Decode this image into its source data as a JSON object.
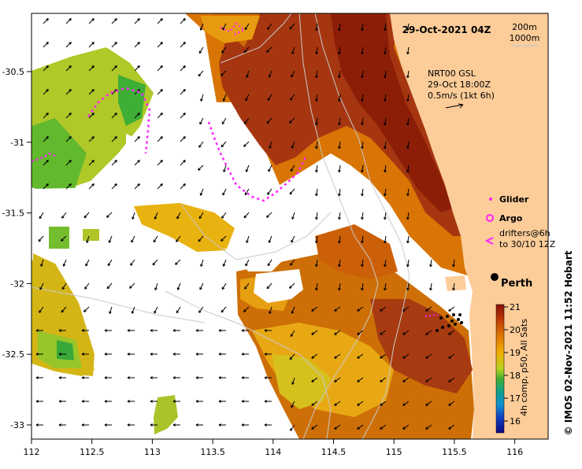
{
  "title": "29-Oct-2021 04Z",
  "isobaths": [
    "200m",
    "1000m"
  ],
  "current_info": {
    "lines": [
      "NRT00 GSL",
      "29-Oct 18:00Z",
      "0.5m/s (1kt 6h)"
    ]
  },
  "legend": {
    "glider": "Glider",
    "argo": "Argo",
    "drifters_line1": "drifters@6h",
    "drifters_line2": "to 30/10 12Z"
  },
  "place": "Perth",
  "colorbar": {
    "ticks": [
      "21",
      "20",
      "19",
      "18",
      "17",
      "16"
    ],
    "label": "4h comp, p50, All Sats"
  },
  "credit": "© IMOS 02-Nov-2021 11:52 Hobart",
  "axes": {
    "x_ticks": [
      "112",
      "112.5",
      "113",
      "113.5",
      "114",
      "114.5",
      "115",
      "115.5",
      "116"
    ],
    "y_ticks": [
      "-30.5",
      "-31",
      "-31.5",
      "-32",
      "-32.5",
      "-33"
    ]
  },
  "colors": {
    "land": "#fccc99",
    "warm": "#8a1c08",
    "cool": "#54b82c",
    "drifter": "#ff22ff",
    "isobath": "#c9c9c9"
  }
}
